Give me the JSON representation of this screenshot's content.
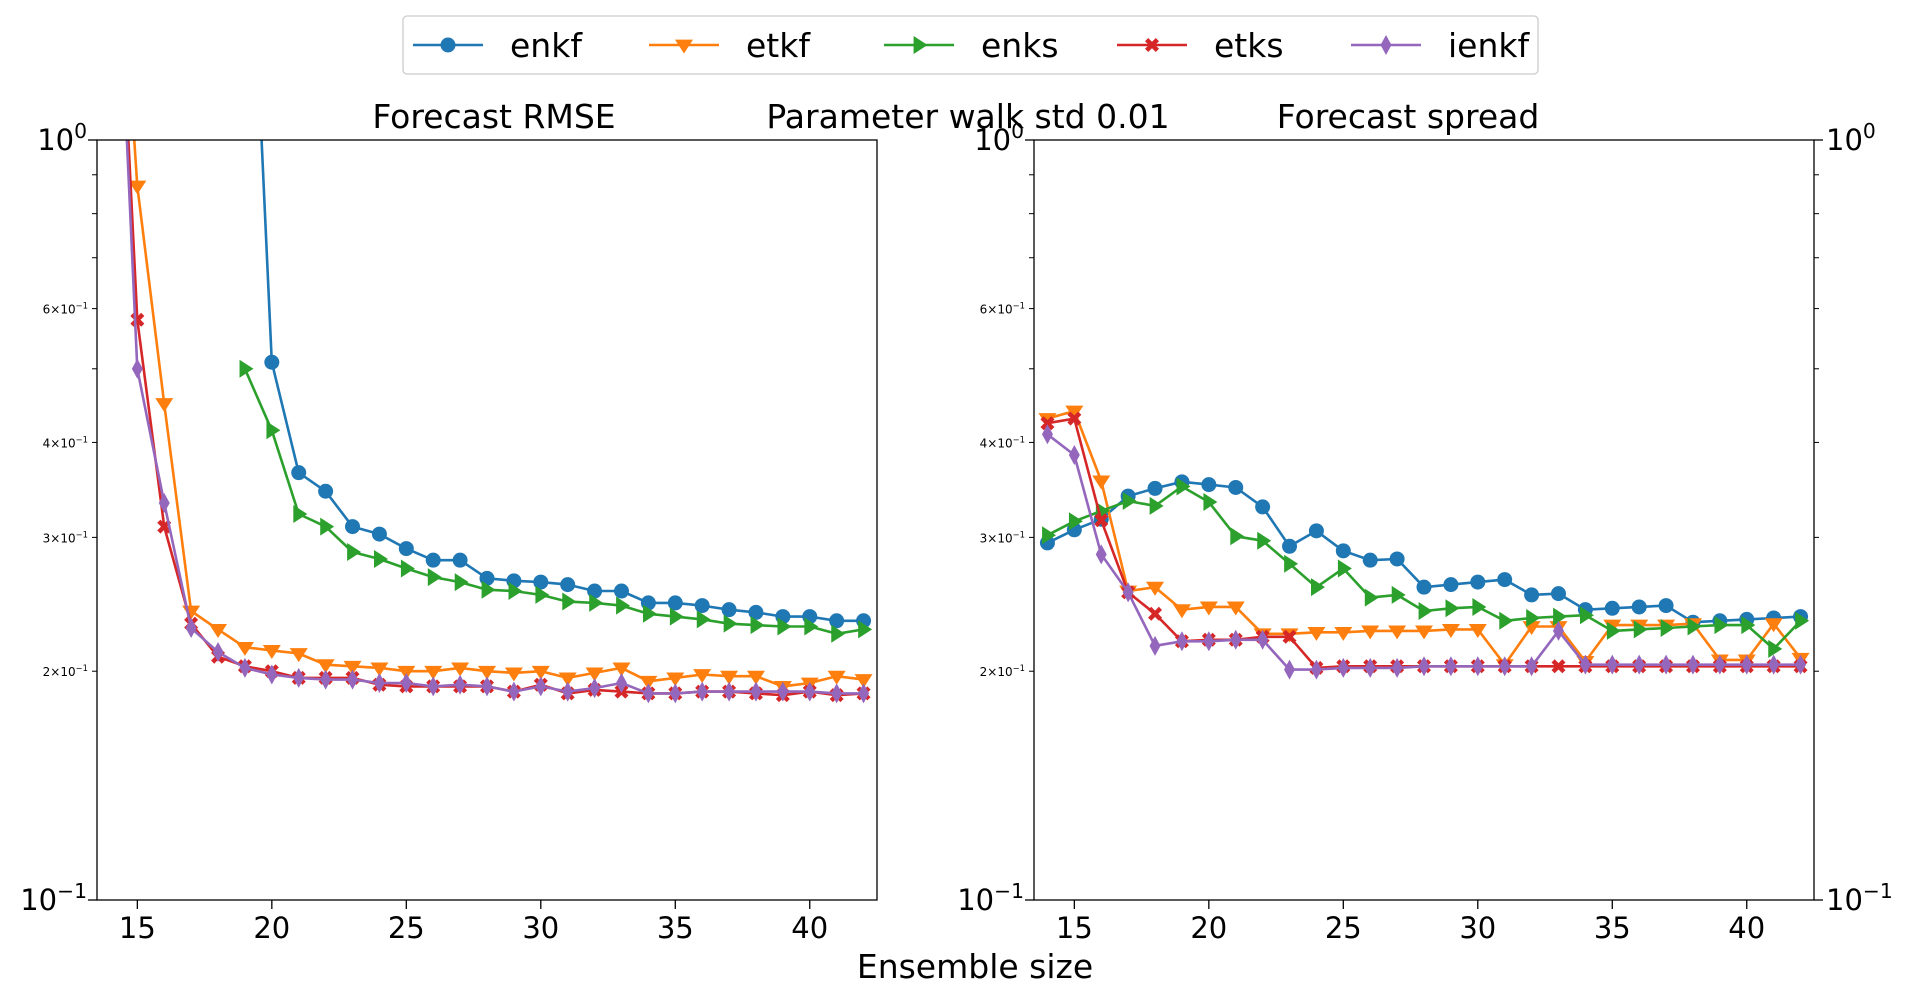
{
  "figure": {
    "suptitle": "Parameter walk std 0.01",
    "xlabel": "Ensemble size"
  },
  "legend": [
    {
      "name": "enkf",
      "color": "#1f77b4",
      "marker": "circle"
    },
    {
      "name": "etkf",
      "color": "#ff7f0e",
      "marker": "triangle-down"
    },
    {
      "name": "enks",
      "color": "#2ca02c",
      "marker": "triangle-right"
    },
    {
      "name": "etks",
      "color": "#d62728",
      "marker": "x-filled"
    },
    {
      "name": "ienkf",
      "color": "#9467bd",
      "marker": "thin-diamond"
    }
  ],
  "chart_data": [
    {
      "type": "line",
      "title": "Forecast RMSE",
      "xlabel": "Ensemble size",
      "ylabel": "",
      "yscale": "log",
      "ylim": [
        0.1,
        1.0
      ],
      "xlim": [
        13.5,
        42.5
      ],
      "xticks": [
        15,
        20,
        25,
        30,
        35,
        40
      ],
      "yticks_major": [
        {
          "value": 0.1,
          "label": "10^{-1}"
        },
        {
          "value": 1.0,
          "label": "10^{0}"
        }
      ],
      "yticks_minor_labeled": [
        {
          "value": 0.2,
          "label": "2×10^{-1}"
        },
        {
          "value": 0.3,
          "label": "3×10^{-1}"
        },
        {
          "value": 0.4,
          "label": "4×10^{-1}"
        },
        {
          "value": 0.6,
          "label": "6×10^{-1}"
        }
      ],
      "y_axis_side": "left",
      "x": [
        14,
        15,
        16,
        17,
        18,
        19,
        20,
        21,
        22,
        23,
        24,
        25,
        26,
        27,
        28,
        29,
        30,
        31,
        32,
        33,
        34,
        35,
        36,
        37,
        38,
        39,
        40,
        41,
        42
      ],
      "series": [
        {
          "name": "enkf",
          "values": [
            null,
            null,
            null,
            null,
            null,
            3.0,
            0.51,
            0.365,
            0.345,
            0.31,
            0.303,
            0.29,
            0.28,
            0.28,
            0.265,
            0.263,
            0.262,
            0.26,
            0.255,
            0.255,
            0.246,
            0.246,
            0.244,
            0.241,
            0.239,
            0.236,
            0.236,
            0.233,
            0.233
          ]
        },
        {
          "name": "etkf",
          "values": [
            3.0,
            0.87,
            0.45,
            0.24,
            0.227,
            0.215,
            0.213,
            0.211,
            0.204,
            0.203,
            0.202,
            0.2,
            0.2,
            0.202,
            0.2,
            0.199,
            0.2,
            0.196,
            0.199,
            0.202,
            0.194,
            0.196,
            0.198,
            0.197,
            0.197,
            0.191,
            0.193,
            0.197,
            0.195
          ]
        },
        {
          "name": "enks",
          "values": [
            null,
            null,
            null,
            null,
            null,
            0.5,
            0.415,
            0.322,
            0.31,
            0.287,
            0.281,
            0.273,
            0.266,
            0.262,
            0.256,
            0.255,
            0.252,
            0.247,
            0.246,
            0.244,
            0.238,
            0.236,
            0.234,
            0.231,
            0.23,
            0.229,
            0.229,
            0.224,
            0.227
          ]
        },
        {
          "name": "etks",
          "values": [
            3.0,
            0.58,
            0.31,
            0.231,
            0.209,
            0.203,
            0.2,
            0.196,
            0.196,
            0.196,
            0.192,
            0.191,
            0.191,
            0.191,
            0.191,
            0.188,
            0.192,
            0.187,
            0.189,
            0.188,
            0.187,
            0.187,
            0.188,
            0.188,
            0.187,
            0.186,
            0.188,
            0.186,
            0.187
          ]
        },
        {
          "name": "ienkf",
          "values": [
            3.0,
            0.5,
            0.333,
            0.228,
            0.212,
            0.202,
            0.198,
            0.196,
            0.195,
            0.195,
            0.193,
            0.193,
            0.191,
            0.192,
            0.191,
            0.188,
            0.191,
            0.188,
            0.19,
            0.193,
            0.187,
            0.187,
            0.188,
            0.188,
            0.188,
            0.188,
            0.188,
            0.187,
            0.187
          ]
        }
      ]
    },
    {
      "type": "line",
      "title": "Forecast spread",
      "xlabel": "Ensemble size",
      "ylabel": "",
      "yscale": "log",
      "ylim": [
        0.1,
        1.0
      ],
      "xlim": [
        13.5,
        42.5
      ],
      "xticks": [
        15,
        20,
        25,
        30,
        35,
        40
      ],
      "yticks_major": [
        {
          "value": 0.1,
          "label": "10^{-1}"
        },
        {
          "value": 1.0,
          "label": "10^{0}"
        }
      ],
      "yticks_minor_labeled": [
        {
          "value": 0.2,
          "label": "2×10^{-1}"
        },
        {
          "value": 0.3,
          "label": "3×10^{-1}"
        },
        {
          "value": 0.4,
          "label": "4×10^{-1}"
        },
        {
          "value": 0.6,
          "label": "6×10^{-1}"
        }
      ],
      "y_axis_side": "both",
      "x": [
        14,
        15,
        16,
        17,
        18,
        19,
        20,
        21,
        22,
        23,
        24,
        25,
        26,
        27,
        28,
        29,
        30,
        31,
        32,
        33,
        34,
        35,
        36,
        37,
        38,
        39,
        40,
        41,
        42
      ],
      "series": [
        {
          "name": "enkf",
          "values": [
            0.295,
            0.307,
            0.317,
            0.34,
            0.348,
            0.355,
            0.352,
            0.349,
            0.329,
            0.292,
            0.306,
            0.288,
            0.28,
            0.281,
            0.258,
            0.26,
            0.262,
            0.264,
            0.252,
            0.253,
            0.241,
            0.242,
            0.243,
            0.244,
            0.232,
            0.233,
            0.234,
            0.235,
            0.236
          ]
        },
        {
          "name": "etkf",
          "values": [
            0.43,
            0.44,
            0.356,
            0.255,
            0.258,
            0.241,
            0.243,
            0.243,
            0.224,
            0.224,
            0.225,
            0.225,
            0.226,
            0.226,
            0.226,
            0.227,
            0.227,
            0.204,
            0.229,
            0.229,
            0.206,
            0.23,
            0.23,
            0.23,
            0.231,
            0.207,
            0.207,
            0.231,
            0.208
          ]
        },
        {
          "name": "enks",
          "values": [
            0.302,
            0.315,
            0.325,
            0.335,
            0.33,
            0.35,
            0.334,
            0.301,
            0.297,
            0.277,
            0.258,
            0.273,
            0.25,
            0.252,
            0.24,
            0.242,
            0.243,
            0.233,
            0.235,
            0.236,
            0.237,
            0.226,
            0.227,
            0.228,
            0.229,
            0.23,
            0.23,
            0.214,
            0.233
          ]
        },
        {
          "name": "etks",
          "values": [
            0.424,
            0.43,
            0.316,
            0.254,
            0.238,
            0.219,
            0.22,
            0.22,
            0.222,
            0.222,
            0.202,
            0.203,
            0.203,
            0.203,
            0.203,
            0.203,
            0.203,
            0.203,
            0.203,
            0.203,
            0.203,
            0.203,
            0.203,
            0.203,
            0.203,
            0.203,
            0.203,
            0.203,
            0.203
          ]
        },
        {
          "name": "ienkf",
          "values": [
            0.41,
            0.385,
            0.285,
            0.254,
            0.216,
            0.219,
            0.219,
            0.22,
            0.22,
            0.201,
            0.201,
            0.202,
            0.202,
            0.202,
            0.203,
            0.203,
            0.203,
            0.203,
            0.203,
            0.226,
            0.204,
            0.204,
            0.204,
            0.204,
            0.204,
            0.204,
            0.204,
            0.204,
            0.204
          ]
        }
      ]
    }
  ]
}
